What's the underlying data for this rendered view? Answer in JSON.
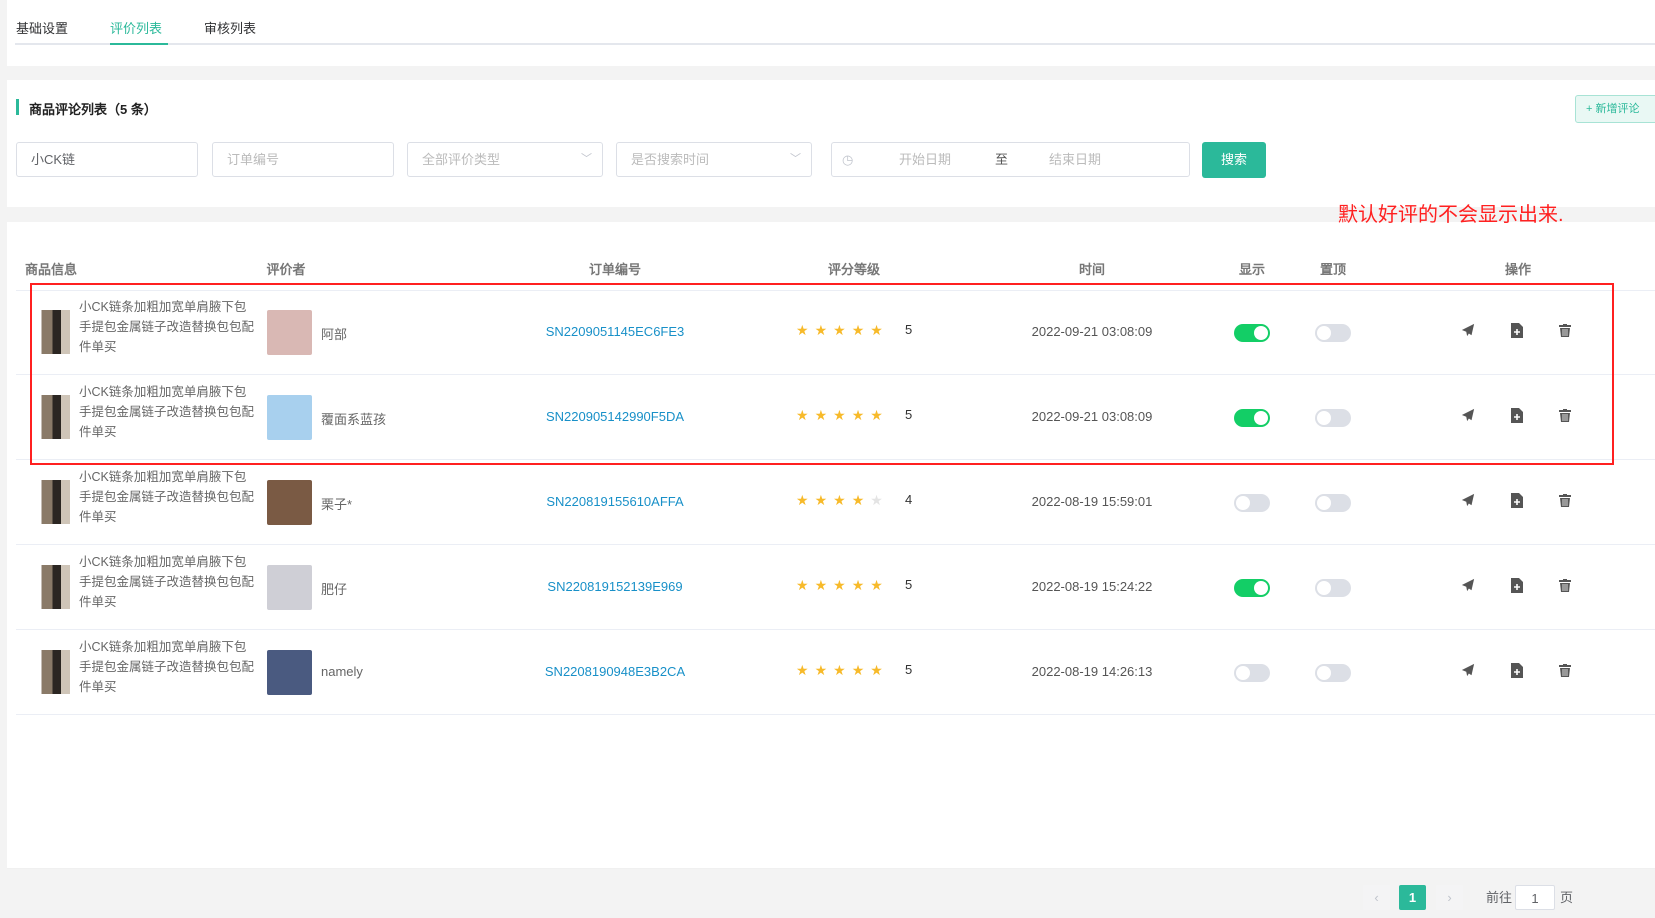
{
  "tabs": [
    {
      "label": "基础设置"
    },
    {
      "label": "评价列表"
    },
    {
      "label": "审核列表"
    }
  ],
  "section_title": "商品评论列表（5 条）",
  "add_button": "+ 新增评论",
  "filters": {
    "keyword_value": "小CK链",
    "order_placeholder": "订单编号",
    "type_placeholder": "全部评价类型",
    "time_placeholder": "是否搜索时间",
    "start_placeholder": "开始日期",
    "range_sep": "至",
    "end_placeholder": "结束日期",
    "search_label": "搜索"
  },
  "annotation": "默认好评的不会显示出来.",
  "colors": {
    "accent": "#2bb99a",
    "annotation": "#ff2020",
    "toggle_on": "#13ce66",
    "link": "#1890c8",
    "star": "#f7ba2a"
  },
  "columns": [
    "商品信息",
    "评价者",
    "订单编号",
    "评分等级",
    "时间",
    "显示",
    "置顶",
    "操作"
  ],
  "rows": [
    {
      "product": "小CK链条加粗加宽单肩腋下包手提包金属链子改造替换包包配件单买",
      "reviewer": "阿部",
      "order": "SN2209051145EC6FE3",
      "rating": 5,
      "score": "5",
      "time": "2022-09-21 03:08:09",
      "show": true,
      "top": false,
      "avatar": "#d9b8b4"
    },
    {
      "product": "小CK链条加粗加宽单肩腋下包手提包金属链子改造替换包包配件单买",
      "reviewer": "覆面系蓝孩",
      "order": "SN220905142990F5DA",
      "rating": 5,
      "score": "5",
      "time": "2022-09-21 03:08:09",
      "show": true,
      "top": false,
      "avatar": "#a8d0ee"
    },
    {
      "product": "小CK链条加粗加宽单肩腋下包手提包金属链子改造替换包包配件单买",
      "reviewer": "栗子*",
      "order": "SN220819155610AFFA",
      "rating": 4,
      "score": "4",
      "time": "2022-08-19 15:59:01",
      "show": false,
      "top": false,
      "avatar": "#7a5a44"
    },
    {
      "product": "小CK链条加粗加宽单肩腋下包手提包金属链子改造替换包包配件单买",
      "reviewer": "肥仔",
      "order": "SN220819152139E969",
      "rating": 5,
      "score": "5",
      "time": "2022-08-19 15:24:22",
      "show": true,
      "top": false,
      "avatar": "#cfcfd6"
    },
    {
      "product": "小CK链条加粗加宽单肩腋下包手提包金属链子改造替换包包配件单买",
      "reviewer": "namely",
      "order": "SN2208190948E3B2CA",
      "rating": 5,
      "score": "5",
      "time": "2022-08-19 14:26:13",
      "show": false,
      "top": false,
      "avatar": "#4a5a80"
    }
  ],
  "pagination": {
    "current": "1",
    "goto_label": "前往",
    "goto_value": "1",
    "page_suffix": "页"
  }
}
